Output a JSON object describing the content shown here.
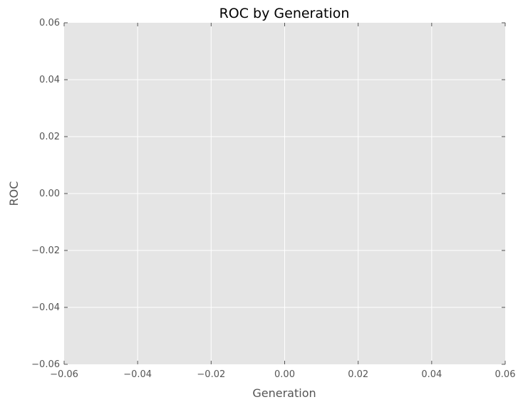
{
  "chart_data": {
    "type": "line",
    "title": "ROC by Generation",
    "xlabel": "Generation",
    "ylabel": "ROC",
    "xlim": [
      -0.06,
      0.06
    ],
    "ylim": [
      -0.06,
      0.06
    ],
    "x_ticks": [
      -0.06,
      -0.04,
      -0.02,
      0.0,
      0.02,
      0.04,
      0.06
    ],
    "y_ticks": [
      -0.06,
      -0.04,
      -0.02,
      0.0,
      0.02,
      0.04,
      0.06
    ],
    "x_tick_labels": [
      "−0.06",
      "−0.04",
      "−0.02",
      "0.00",
      "0.02",
      "0.04",
      "0.06"
    ],
    "y_tick_labels": [
      "−0.06",
      "−0.04",
      "−0.02",
      "0.00",
      "0.02",
      "0.04",
      "0.06"
    ],
    "grid": true,
    "series": [],
    "colors": {
      "plot_background": "#e5e5e5",
      "grid": "#ffffff",
      "tick": "#555555"
    }
  }
}
